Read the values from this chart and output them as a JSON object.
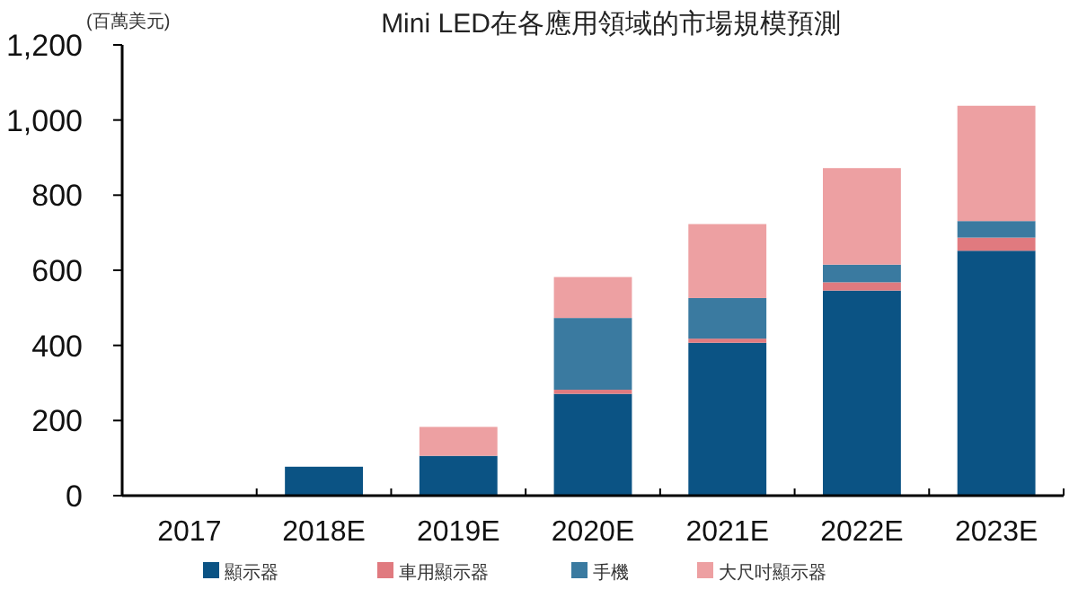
{
  "chart_data": {
    "type": "bar",
    "title": "Mini LED在各應用領域的市場規模預測",
    "ylabel": "(百萬美元)",
    "stacked": true,
    "legend": "bottom",
    "grid": false,
    "categories": [
      "2017",
      "2018E",
      "2019E",
      "2020E",
      "2021E",
      "2022E",
      "2023E"
    ],
    "ylim": [
      0,
      1200
    ],
    "yticks": [
      0,
      {
        "value": 200,
        "label": "200"
      },
      {
        "value": 400,
        "label": "400"
      },
      {
        "value": 600,
        "label": "600"
      },
      {
        "value": 800,
        "label": "800"
      },
      {
        "value": 1000,
        "label": "1,000"
      },
      {
        "value": 1200,
        "label": "1,200"
      }
    ],
    "series": [
      {
        "name": "顯示器",
        "color": "#0b5384",
        "values": [
          0,
          77,
          106,
          271,
          407,
          546,
          652
        ]
      },
      {
        "name": "車用顯示器",
        "color": "#e07a7f",
        "values": [
          0,
          0,
          0,
          11,
          11,
          22,
          35
        ]
      },
      {
        "name": "手機",
        "color": "#3a7aa0",
        "values": [
          0,
          0,
          0,
          191,
          108,
          47,
          44
        ]
      },
      {
        "name": "大尺吋顯示器",
        "color": "#eda0a2",
        "values": [
          0,
          0,
          77,
          109,
          197,
          257,
          307
        ]
      }
    ]
  }
}
